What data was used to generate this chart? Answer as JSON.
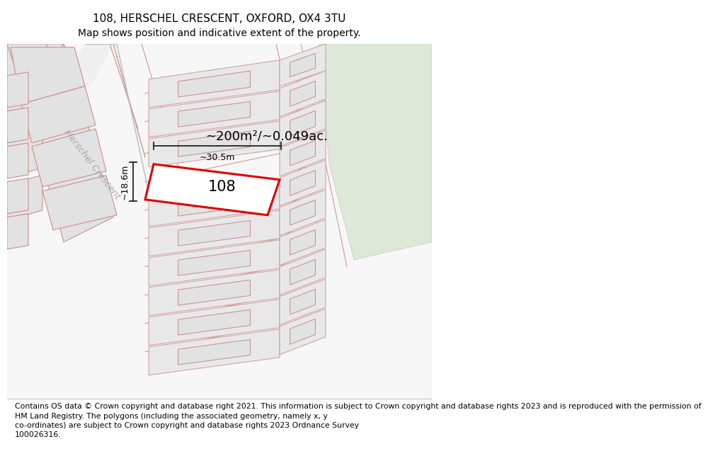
{
  "title_line1": "108, HERSCHEL CRESCENT, OXFORD, OX4 3TU",
  "title_line2": "Map shows position and indicative extent of the property.",
  "map_bg_color": "#f7f7f7",
  "park_color": "#dde8d8",
  "building_fill": "#e2e2e2",
  "building_edge": "#cc8888",
  "plot_outline_color": "#ddaaaa",
  "highlight_fill": "#ffffff",
  "highlight_edge": "#dd0000",
  "highlight_edge_width": 2.2,
  "dim_line_color": "#222222",
  "area_text": "~200m²/~0.049ac.",
  "width_text": "~30.5m",
  "height_text": "~18.6m",
  "parcel_label": "108",
  "road_label": "Herschel Crescent",
  "footer_text": "Contains OS data © Crown copyright and database right 2021. This information is subject to Crown copyright and database rights 2023 and is reproduced with the permission of\nHM Land Registry. The polygons (including the associated geometry, namely x, y\nco-ordinates) are subject to Crown copyright and database rights 2023 Ordnance Survey\n100026316.",
  "title_fontsize": 11,
  "subtitle_fontsize": 10,
  "footer_fontsize": 7.8,
  "area_fontsize": 13,
  "label_fontsize": 15,
  "dim_fontsize": 9,
  "road_label_fontsize": 9.5,
  "road_label_color": "#aaaaaa"
}
